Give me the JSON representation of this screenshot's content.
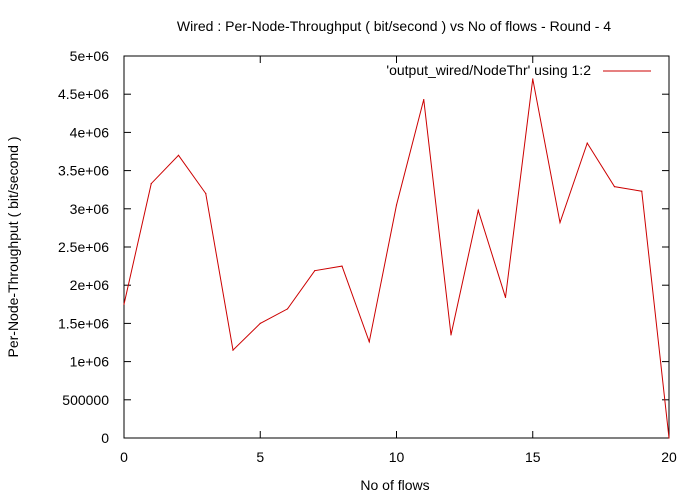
{
  "chart_data": {
    "type": "line",
    "title": "Wired : Per-Node-Throughput ( bit/second ) vs No of flows - Round - 4",
    "xlabel": "No of flows",
    "ylabel": "Per-Node-Throughput ( bit/second )",
    "xlim": [
      0,
      20
    ],
    "ylim": [
      0,
      5000000
    ],
    "x_ticks": [
      0,
      5,
      10,
      15,
      20
    ],
    "x_tick_labels": [
      "0",
      "5",
      "10",
      "15",
      "20"
    ],
    "y_ticks": [
      0,
      500000,
      1000000,
      1500000,
      2000000,
      2500000,
      3000000,
      3500000,
      4000000,
      4500000,
      5000000
    ],
    "y_tick_labels": [
      "0",
      "500000",
      "1e+06",
      "1.5e+06",
      "2e+06",
      "2.5e+06",
      "3e+06",
      "3.5e+06",
      "4e+06",
      "4.5e+06",
      "5e+06"
    ],
    "grid": false,
    "legend_position": "top-right",
    "series": [
      {
        "name": "'output_wired/NodeThr' using 1:2",
        "color": "#cc0000",
        "x": [
          0,
          1,
          2,
          3,
          4,
          5,
          6,
          7,
          8,
          9,
          10,
          11,
          12,
          13,
          14,
          15,
          16,
          17,
          18,
          19,
          20
        ],
        "values": [
          1750000,
          3330000,
          3700000,
          3200000,
          1150000,
          1500000,
          1690000,
          2190000,
          2250000,
          1260000,
          3050000,
          4430000,
          1350000,
          2980000,
          1840000,
          4700000,
          2820000,
          3860000,
          3290000,
          3230000,
          0
        ]
      }
    ]
  }
}
